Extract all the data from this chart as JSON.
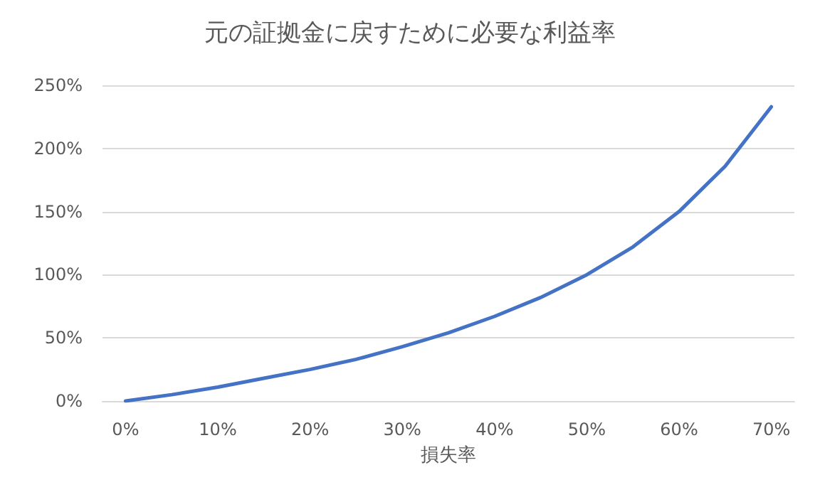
{
  "chart_data": {
    "type": "line",
    "title": "元の証拠金に戻すために必要な利益率",
    "xlabel": "損失率",
    "categories": [
      "0%",
      null,
      "10%",
      null,
      "20%",
      null,
      "30%",
      null,
      "40%",
      null,
      "50%",
      null,
      "60%",
      null,
      "70%"
    ],
    "series": [
      {
        "color": "#4472c4",
        "values": [
          0,
          5,
          11,
          18,
          25,
          33,
          43,
          54,
          67,
          82,
          100,
          122,
          150,
          186,
          233
        ]
      }
    ],
    "ylim": [
      0,
      250
    ],
    "yticks": [
      {
        "value": 0,
        "label": "0%"
      },
      {
        "value": 50,
        "label": "50%"
      },
      {
        "value": 100,
        "label": "100%"
      },
      {
        "value": 150,
        "label": "150%"
      },
      {
        "value": 200,
        "label": "200%"
      },
      {
        "value": 250,
        "label": "250%"
      }
    ],
    "grid": "y",
    "marker": "none",
    "line_style": "solid"
  }
}
